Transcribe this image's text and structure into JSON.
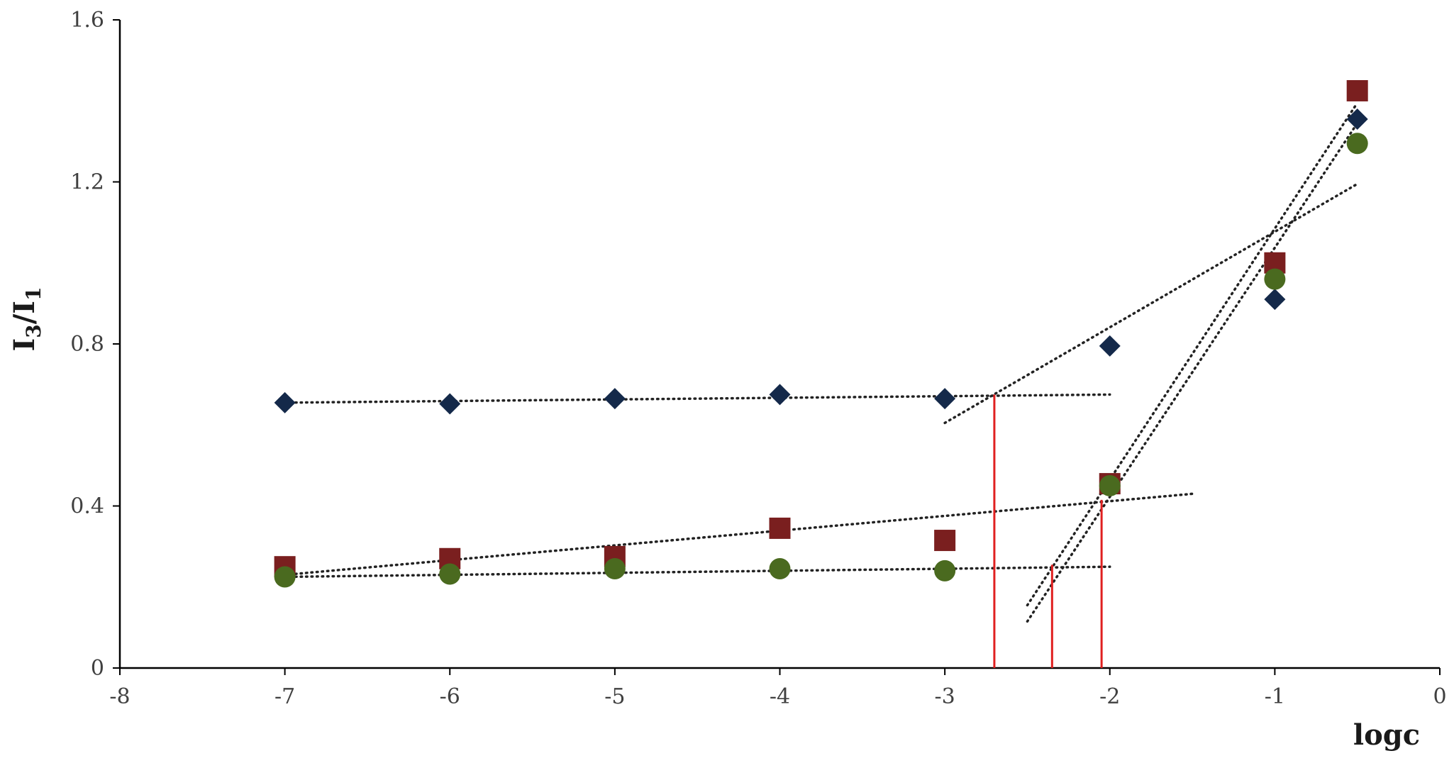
{
  "chart_data": {
    "type": "scatter",
    "title": "",
    "xlabel": "logc",
    "ylabel": "I3/I1",
    "ylabel_main": "I",
    "ylabel_sub1": "3",
    "ylabel_slash": "/I",
    "ylabel_sub2": "1",
    "xlim": [
      -8,
      0
    ],
    "ylim": [
      0,
      1.6
    ],
    "x_ticks": [
      -8,
      -7,
      -6,
      -5,
      -4,
      -3,
      -2,
      -1,
      0
    ],
    "x_tick_labels": [
      "-8",
      "-7",
      "-6",
      "-5",
      "-4",
      "-3",
      "-2",
      "-1",
      "0"
    ],
    "y_ticks": [
      0,
      0.4,
      0.8,
      1.2,
      1.6
    ],
    "y_tick_labels": [
      "0",
      "0.4",
      "0.8",
      "1.2",
      "1.6"
    ],
    "grid": false,
    "legend": "none",
    "series": [
      {
        "marker": "diamond",
        "color": "#14294a",
        "x": [
          -7,
          -6,
          -5,
          -4,
          -3,
          -2,
          -1,
          -0.5
        ],
        "y": [
          0.655,
          0.652,
          0.665,
          0.675,
          0.665,
          0.795,
          0.91,
          1.355
        ]
      },
      {
        "marker": "square",
        "color": "#7a1f1f",
        "x": [
          -7,
          -6,
          -5,
          -4,
          -3,
          -2,
          -1,
          -0.5
        ],
        "y": [
          0.25,
          0.27,
          0.275,
          0.345,
          0.315,
          0.455,
          1.0,
          1.425
        ]
      },
      {
        "marker": "circle",
        "color": "#4a6a1f",
        "x": [
          -7,
          -6,
          -5,
          -4,
          -3,
          -2,
          -1,
          -0.5
        ],
        "y": [
          0.225,
          0.232,
          0.245,
          0.245,
          0.24,
          0.45,
          0.96,
          1.295
        ]
      }
    ],
    "trendlines": [
      {
        "x": [
          -7,
          -2
        ],
        "y": [
          0.655,
          0.675
        ]
      },
      {
        "x": [
          -3,
          -0.5
        ],
        "y": [
          0.605,
          1.195
        ]
      },
      {
        "x": [
          -7,
          -1.5
        ],
        "y": [
          0.23,
          0.43
        ]
      },
      {
        "x": [
          -7,
          -2
        ],
        "y": [
          0.225,
          0.25
        ]
      },
      {
        "x": [
          -2.5,
          -0.5
        ],
        "y": [
          0.155,
          1.395
        ]
      },
      {
        "x": [
          -2.5,
          -0.5
        ],
        "y": [
          0.115,
          1.345
        ]
      }
    ],
    "marker_lines": {
      "color": "#e02020",
      "items": [
        {
          "x": -2.7,
          "y": 0.675
        },
        {
          "x": -2.35,
          "y": 0.255
        },
        {
          "x": -2.05,
          "y": 0.415
        }
      ]
    }
  }
}
